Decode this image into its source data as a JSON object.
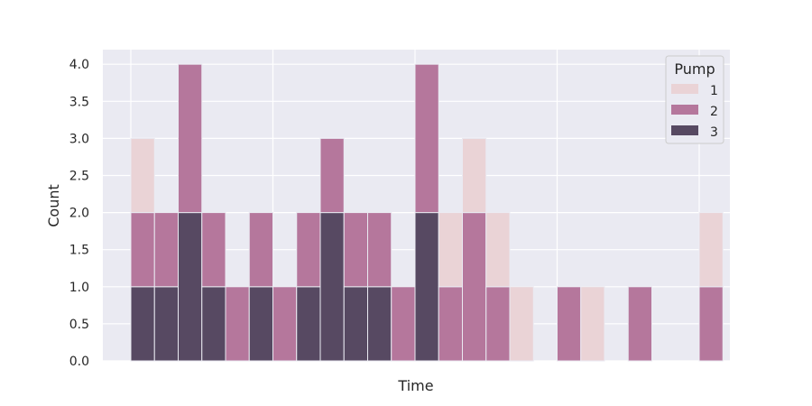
{
  "chart_data": {
    "type": "bar",
    "stacked": true,
    "xlabel": "Time",
    "ylabel": "Count",
    "ylim": [
      0,
      4.2
    ],
    "y_ticks": [
      0.0,
      0.5,
      1.0,
      1.5,
      2.0,
      2.5,
      3.0,
      3.5,
      4.0
    ],
    "grid": true,
    "x_tick_labels": "none",
    "legend": {
      "title": "Pump",
      "position": "top-right"
    },
    "bin_count": 25,
    "series": [
      {
        "name": "1",
        "color": "#ead3d6",
        "values": [
          1,
          0,
          0,
          0,
          0,
          0,
          0,
          0,
          0,
          0,
          0,
          0,
          0,
          1,
          1,
          1,
          1,
          0,
          0,
          1,
          0,
          0,
          0,
          0,
          1
        ]
      },
      {
        "name": "2",
        "color": "#b5779c",
        "values": [
          1,
          1,
          2,
          1,
          1,
          1,
          1,
          1,
          1,
          1,
          1,
          1,
          2,
          1,
          2,
          1,
          0,
          0,
          1,
          0,
          0,
          1,
          0,
          0,
          1
        ]
      },
      {
        "name": "3",
        "color": "#574962",
        "values": [
          1,
          1,
          2,
          1,
          0,
          1,
          0,
          1,
          2,
          1,
          1,
          0,
          2,
          0,
          0,
          0,
          0,
          0,
          0,
          0,
          0,
          0,
          0,
          0,
          0
        ]
      }
    ]
  }
}
